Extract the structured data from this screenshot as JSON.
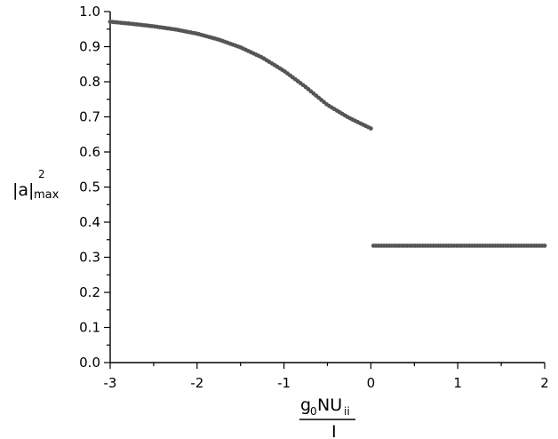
{
  "chart_data": {
    "type": "scatter",
    "ylabel": {
      "base": "|a|",
      "sup": "2",
      "sub": "max"
    },
    "xlabel": {
      "numerator": {
        "g": "g",
        "g_sub": "0",
        "mid": "NU",
        "u_sub": "ii"
      },
      "denominator": "I"
    },
    "xlim": [
      -3,
      2
    ],
    "ylim": [
      0,
      1
    ],
    "xticks": [
      "-3",
      "-2",
      "-1",
      "0",
      "1",
      "2"
    ],
    "yticks": [
      "0.0",
      "0.1",
      "0.2",
      "0.3",
      "0.4",
      "0.5",
      "0.6",
      "0.7",
      "0.8",
      "0.9",
      "1.0"
    ],
    "grid": false,
    "series": [
      {
        "color": "#555555",
        "segments": [
          {
            "x_range": [
              -3.0,
              0.0
            ],
            "points": [
              [
                -3.0,
                0.971
              ],
              [
                -2.75,
                0.965
              ],
              [
                -2.5,
                0.958
              ],
              [
                -2.25,
                0.949
              ],
              [
                -2.0,
                0.937
              ],
              [
                -1.75,
                0.92
              ],
              [
                -1.5,
                0.898
              ],
              [
                -1.25,
                0.869
              ],
              [
                -1.0,
                0.831
              ],
              [
                -0.75,
                0.785
              ],
              [
                -0.5,
                0.734
              ],
              [
                -0.25,
                0.697
              ],
              [
                0.0,
                0.667
              ]
            ]
          },
          {
            "x_range": [
              0.03,
              2.0
            ],
            "points": [
              [
                0.03,
                0.333
              ],
              [
                2.0,
                0.333
              ]
            ]
          }
        ]
      }
    ]
  }
}
